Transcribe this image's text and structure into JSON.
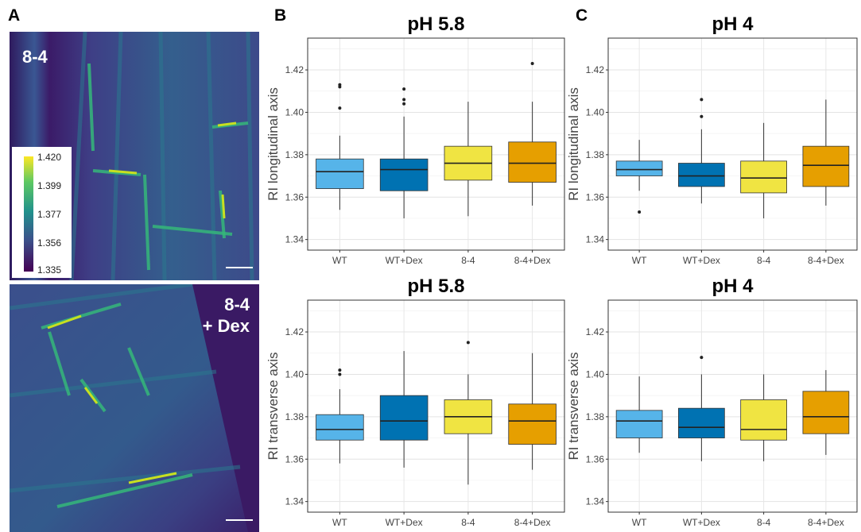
{
  "panels": {
    "a": "A",
    "b": "B",
    "c": "C"
  },
  "micrographs": {
    "top_label": "8-4",
    "bottom_label_line1": "8-4",
    "bottom_label_line2": "+ Dex",
    "colorbar_ticks": [
      "1.420",
      "1.399",
      "1.377",
      "1.356",
      "1.335"
    ]
  },
  "colors": {
    "WT": "#56b4e9",
    "WT+Dex": "#0072b2",
    "8-4": "#f0e442",
    "8-4+Dex": "#e69f00"
  },
  "chart_data": [
    {
      "id": "b-top",
      "type": "boxplot",
      "title": "pH 5.8",
      "ylabel": "RI longitudinal axis",
      "categories": [
        "WT",
        "WT+Dex",
        "8-4",
        "8-4+Dex"
      ],
      "ylim": [
        1.335,
        1.435
      ],
      "yticks": [
        "1.34",
        "1.36",
        "1.38",
        "1.40",
        "1.42"
      ],
      "grid": true,
      "boxes": [
        {
          "min": 1.354,
          "q1": 1.364,
          "median": 1.372,
          "q3": 1.378,
          "max": 1.389,
          "outliers": [
            1.402,
            1.412,
            1.413
          ]
        },
        {
          "min": 1.35,
          "q1": 1.363,
          "median": 1.373,
          "q3": 1.378,
          "max": 1.398,
          "outliers": [
            1.404,
            1.406,
            1.411
          ]
        },
        {
          "min": 1.351,
          "q1": 1.368,
          "median": 1.376,
          "q3": 1.384,
          "max": 1.405,
          "outliers": []
        },
        {
          "min": 1.356,
          "q1": 1.367,
          "median": 1.376,
          "q3": 1.386,
          "max": 1.405,
          "outliers": [
            1.423
          ]
        }
      ]
    },
    {
      "id": "c-top",
      "type": "boxplot",
      "title": "pH 4",
      "ylabel": "RI longitudinal axis",
      "categories": [
        "WT",
        "WT+Dex",
        "8-4",
        "8-4+Dex"
      ],
      "ylim": [
        1.335,
        1.435
      ],
      "yticks": [
        "1.34",
        "1.36",
        "1.38",
        "1.40",
        "1.42"
      ],
      "grid": true,
      "boxes": [
        {
          "min": 1.363,
          "q1": 1.37,
          "median": 1.373,
          "q3": 1.377,
          "max": 1.387,
          "outliers": [
            1.353
          ]
        },
        {
          "min": 1.357,
          "q1": 1.365,
          "median": 1.37,
          "q3": 1.376,
          "max": 1.392,
          "outliers": [
            1.398,
            1.406
          ]
        },
        {
          "min": 1.35,
          "q1": 1.362,
          "median": 1.369,
          "q3": 1.377,
          "max": 1.395,
          "outliers": []
        },
        {
          "min": 1.356,
          "q1": 1.365,
          "median": 1.375,
          "q3": 1.384,
          "max": 1.406,
          "outliers": []
        }
      ]
    },
    {
      "id": "b-bottom",
      "type": "boxplot",
      "title": "pH 5.8",
      "ylabel": "RI transverse axis",
      "categories": [
        "WT",
        "WT+Dex",
        "8-4",
        "8-4+Dex"
      ],
      "ylim": [
        1.335,
        1.435
      ],
      "yticks": [
        "1.34",
        "1.36",
        "1.38",
        "1.40",
        "1.42"
      ],
      "grid": true,
      "boxes": [
        {
          "min": 1.358,
          "q1": 1.369,
          "median": 1.374,
          "q3": 1.381,
          "max": 1.393,
          "outliers": [
            1.4,
            1.402
          ]
        },
        {
          "min": 1.356,
          "q1": 1.369,
          "median": 1.378,
          "q3": 1.39,
          "max": 1.411,
          "outliers": []
        },
        {
          "min": 1.348,
          "q1": 1.372,
          "median": 1.38,
          "q3": 1.388,
          "max": 1.4,
          "outliers": [
            1.415
          ]
        },
        {
          "min": 1.355,
          "q1": 1.367,
          "median": 1.378,
          "q3": 1.386,
          "max": 1.41,
          "outliers": []
        }
      ]
    },
    {
      "id": "c-bottom",
      "type": "boxplot",
      "title": "pH 4",
      "ylabel": "RI transverse axis",
      "categories": [
        "WT",
        "WT+Dex",
        "8-4",
        "8-4+Dex"
      ],
      "ylim": [
        1.335,
        1.435
      ],
      "yticks": [
        "1.34",
        "1.36",
        "1.38",
        "1.40",
        "1.42"
      ],
      "grid": true,
      "boxes": [
        {
          "min": 1.363,
          "q1": 1.37,
          "median": 1.378,
          "q3": 1.383,
          "max": 1.399,
          "outliers": []
        },
        {
          "min": 1.359,
          "q1": 1.37,
          "median": 1.375,
          "q3": 1.384,
          "max": 1.4,
          "outliers": [
            1.408
          ]
        },
        {
          "min": 1.359,
          "q1": 1.369,
          "median": 1.374,
          "q3": 1.388,
          "max": 1.4,
          "outliers": []
        },
        {
          "min": 1.362,
          "q1": 1.372,
          "median": 1.38,
          "q3": 1.392,
          "max": 1.402,
          "outliers": []
        }
      ]
    }
  ]
}
